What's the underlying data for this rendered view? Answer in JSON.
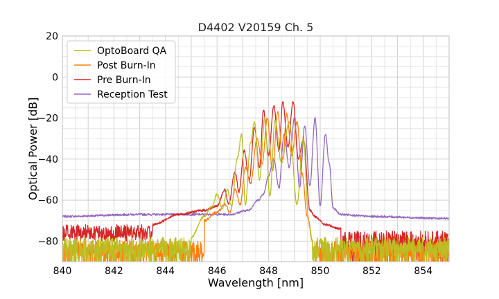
{
  "chart_data": {
    "type": "line",
    "title": "D4402 V20159 Ch. 5",
    "xlabel": "Wavelength [nm]",
    "ylabel": "Optical Power [dB]",
    "xlim": [
      840,
      855
    ],
    "ylim": [
      -90,
      20
    ],
    "xticks": [
      840,
      842,
      844,
      846,
      848,
      850,
      852,
      854
    ],
    "yticks": [
      20,
      0,
      -20,
      -40,
      -60,
      -80
    ],
    "xtick_labels": [
      "840",
      "842",
      "844",
      "846",
      "848",
      "850",
      "852",
      "854"
    ],
    "ytick_labels": [
      "20",
      "0",
      "−20",
      "−40",
      "−60",
      "−80"
    ],
    "grid": true,
    "legend_position": "top-left",
    "series": [
      {
        "name": "OptoBoard QA",
        "color": "#bcbd22",
        "noise_floor": -82,
        "x": [
          845.0,
          845.5,
          845.8,
          846.0,
          846.2,
          846.4,
          846.55,
          846.8,
          846.95,
          847.1,
          847.3,
          847.45,
          847.65,
          847.85,
          848.05,
          848.25,
          848.5,
          848.8,
          849.1,
          849.35,
          849.55,
          849.7
        ],
        "y": [
          -78,
          -68,
          -63,
          -57,
          -64,
          -55,
          -63,
          -39,
          -28,
          -62,
          -32,
          -22,
          -50,
          -20,
          -58,
          -21,
          -42,
          -22,
          -62,
          -30,
          -70,
          -80
        ]
      },
      {
        "name": "Post Burn-In",
        "color": "#ff7f0e",
        "noise_floor": -84,
        "x": [
          845.5,
          846.0,
          846.3,
          846.5,
          846.7,
          846.9,
          847.1,
          847.3,
          847.55,
          847.75,
          847.95,
          848.15,
          848.35,
          848.55,
          848.7,
          848.9,
          849.1,
          849.3,
          849.5,
          849.7
        ],
        "y": [
          -70,
          -66,
          -62,
          -66,
          -55,
          -62,
          -44,
          -52,
          -30,
          -42,
          -20,
          -46,
          -17,
          -40,
          -18,
          -38,
          -22,
          -47,
          -68,
          -80
        ]
      },
      {
        "name": "Pre Burn-In",
        "color": "#d62728",
        "noise_floor": -79,
        "x": [
          843.5,
          844.5,
          845.5,
          846.0,
          846.3,
          846.45,
          846.7,
          846.85,
          847.05,
          847.25,
          847.45,
          847.65,
          847.8,
          848.0,
          848.2,
          848.4,
          848.55,
          848.75,
          848.95,
          849.15,
          849.35,
          849.6,
          849.8,
          850.2,
          850.8
        ],
        "y": [
          -72,
          -67,
          -65,
          -63,
          -55,
          -62,
          -46,
          -56,
          -36,
          -50,
          -25,
          -44,
          -16,
          -38,
          -14,
          -36,
          -12,
          -34,
          -12,
          -40,
          -30,
          -65,
          -68,
          -72,
          -74
        ]
      },
      {
        "name": "Reception Test",
        "color": "#9467bd",
        "noise_floor": -68,
        "x": [
          840.0,
          843.0,
          845.5,
          846.5,
          847.2,
          847.6,
          847.8,
          848.0,
          848.2,
          848.4,
          848.6,
          848.8,
          849.0,
          849.2,
          849.4,
          849.6,
          849.8,
          850.0,
          850.2,
          850.35,
          850.5,
          850.8,
          852.0,
          855.0
        ],
        "y": [
          -68,
          -67,
          -67,
          -67,
          -65,
          -60,
          -57,
          -48,
          -40,
          -54,
          -28,
          -44,
          -20,
          -54,
          -24,
          -53,
          -20,
          -63,
          -28,
          -42,
          -64,
          -67,
          -68,
          -69
        ]
      }
    ]
  }
}
